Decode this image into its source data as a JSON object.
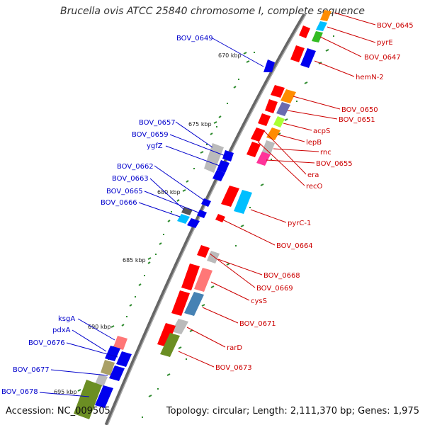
{
  "title": "Brucella ovis ATCC 25840 chromosome I, complete sequence",
  "footer": {
    "accession": "Accession: NC_009505",
    "summary": "Topology: circular; Length: 2,111,370 bp; Genes: 1,975"
  },
  "colors": {
    "backbone": "#777777",
    "tick": "#2e8b2e",
    "left_label": "#0000cc",
    "right_label": "#cc0000",
    "red": "#ff0000",
    "blue": "#0000ee",
    "green": "#33bb22",
    "olive": "#6b8e23",
    "orange": "#ff8c00",
    "cyan": "#00bfff",
    "grey": "#bbbbbb",
    "pink": "#ff3399",
    "lime": "#aaff33",
    "salmon": "#ff7777",
    "steel": "#4682b4",
    "slate": "#6a6ab0"
  },
  "scale_labels": [
    {
      "text": "670 kbp"
    },
    {
      "text": "675 kbp"
    },
    {
      "text": "680 kbp"
    },
    {
      "text": "685 kbp"
    },
    {
      "text": "690 kbp"
    },
    {
      "text": "695 kbp"
    }
  ],
  "left_labels": [
    {
      "text": "BOV_0649"
    },
    {
      "text": "BOV_0657"
    },
    {
      "text": "BOV_0659"
    },
    {
      "text": "ygfZ"
    },
    {
      "text": "BOV_0662"
    },
    {
      "text": "BOV_0663"
    },
    {
      "text": "BOV_0665"
    },
    {
      "text": "BOV_0666"
    },
    {
      "text": "ksgA"
    },
    {
      "text": "pdxA"
    },
    {
      "text": "BOV_0676"
    },
    {
      "text": "BOV_0677"
    },
    {
      "text": "BOV_0678"
    }
  ],
  "right_labels": [
    {
      "text": "BOV_0645"
    },
    {
      "text": "pyrE"
    },
    {
      "text": "BOV_0647"
    },
    {
      "text": "hemN-2"
    },
    {
      "text": "BOV_0650"
    },
    {
      "text": "BOV_0651"
    },
    {
      "text": "acpS"
    },
    {
      "text": "lepB"
    },
    {
      "text": "rnc"
    },
    {
      "text": "BOV_0655"
    },
    {
      "text": "era"
    },
    {
      "text": "recO"
    },
    {
      "text": "pyrC-1"
    },
    {
      "text": "BOV_0664"
    },
    {
      "text": "BOV_0668"
    },
    {
      "text": "BOV_0669"
    },
    {
      "text": "cysS"
    },
    {
      "text": "BOV_0671"
    },
    {
      "text": "rarD"
    },
    {
      "text": "BOV_0673"
    }
  ]
}
